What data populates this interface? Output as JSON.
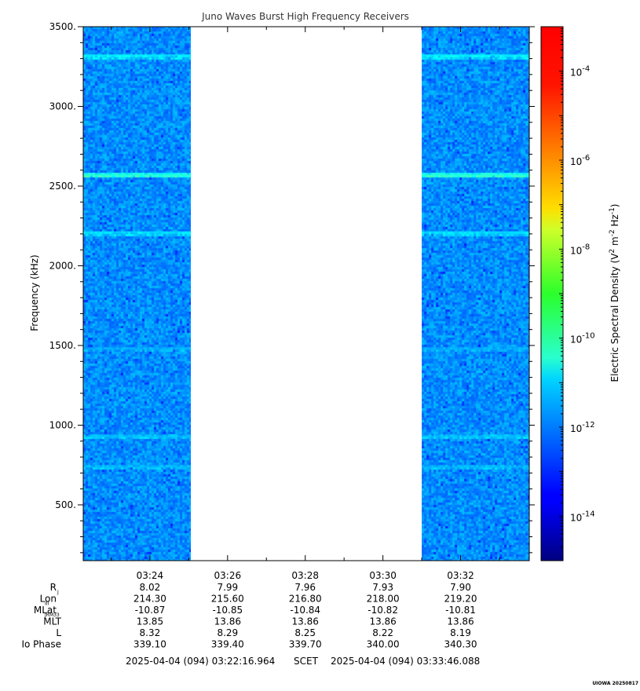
{
  "chart_data": {
    "type": "heatmap",
    "title": "Juno Waves Burst High Frequency Receivers",
    "ylabel": "Frequency (kHz)",
    "colorbar_label_parts": [
      "Electric Spectral Density (V",
      "2",
      " m",
      "-2",
      " Hz",
      "-1",
      ")"
    ],
    "ylim": [
      150,
      3500
    ],
    "y_ticks": [
      {
        "value": 500,
        "label": "500."
      },
      {
        "value": 1000,
        "label": "1000."
      },
      {
        "value": 1500,
        "label": "1500."
      },
      {
        "value": 2000,
        "label": "2000."
      },
      {
        "value": 2500,
        "label": "2500."
      },
      {
        "value": 3000,
        "label": "3000."
      },
      {
        "value": 3500,
        "label": "3500."
      }
    ],
    "y_minor_step": 100,
    "x_ticks": [
      {
        "minute": 24,
        "label": "03:24"
      },
      {
        "minute": 26,
        "label": "03:26"
      },
      {
        "minute": 28,
        "label": "03:28"
      },
      {
        "minute": 30,
        "label": "03:30"
      },
      {
        "minute": 32,
        "label": "03:32"
      }
    ],
    "time_range_minutes": [
      22.283,
      33.769
    ],
    "data_intervals_minutes": [
      [
        22.283,
        25.05
      ],
      [
        31.0,
        33.769
      ]
    ],
    "colorbar": {
      "log_min": -15.0,
      "log_max": -3.0,
      "ticks": [
        {
          "exp": -14,
          "base": "10",
          "sup": "-14"
        },
        {
          "exp": -12,
          "base": "10",
          "sup": "-12"
        },
        {
          "exp": -10,
          "base": "10",
          "sup": "-10"
        },
        {
          "exp": -8,
          "base": "10",
          "sup": "-8"
        },
        {
          "exp": -6,
          "base": "10",
          "sup": "-6"
        },
        {
          "exp": -4,
          "base": "10",
          "sup": "-4"
        }
      ]
    },
    "background_log_level": -11.8,
    "emission_lines_khz": [
      {
        "freq": 3320,
        "log_level": -10.6
      },
      {
        "freq": 2570,
        "log_level": -10.0
      },
      {
        "freq": 2210,
        "log_level": -10.8
      },
      {
        "freq": 1480,
        "log_level": -11.3
      },
      {
        "freq": 930,
        "log_level": -11.1
      },
      {
        "freq": 740,
        "log_level": -11.2
      }
    ]
  },
  "ephemeris": {
    "rows": [
      {
        "label": "R",
        "sub": "J",
        "values": [
          "8.02",
          "7.99",
          "7.96",
          "7.93",
          "7.90"
        ]
      },
      {
        "label": "Lon",
        "sub": "III",
        "values": [
          "214.30",
          "215.60",
          "216.80",
          "218.00",
          "219.20"
        ]
      },
      {
        "label": "MLat",
        "sub": "JRM33",
        "values": [
          "-10.87",
          "-10.85",
          "-10.84",
          "-10.82",
          "-10.81"
        ]
      },
      {
        "label": "MLT",
        "sub": "",
        "values": [
          "13.85",
          "13.86",
          "13.86",
          "13.86",
          "13.86"
        ]
      },
      {
        "label": "L",
        "sub": "",
        "values": [
          "8.32",
          "8.29",
          "8.25",
          "8.22",
          "8.19"
        ]
      },
      {
        "label": "Io Phase",
        "sub": "",
        "values": [
          "339.10",
          "339.40",
          "339.70",
          "340.00",
          "340.30"
        ]
      }
    ]
  },
  "footer": {
    "start_time": "2025-04-04 (094) 03:22:16.964",
    "scet": "SCET",
    "end_time": "2025-04-04 (094) 03:33:46.088",
    "credit": "UIOWA 20250817"
  }
}
